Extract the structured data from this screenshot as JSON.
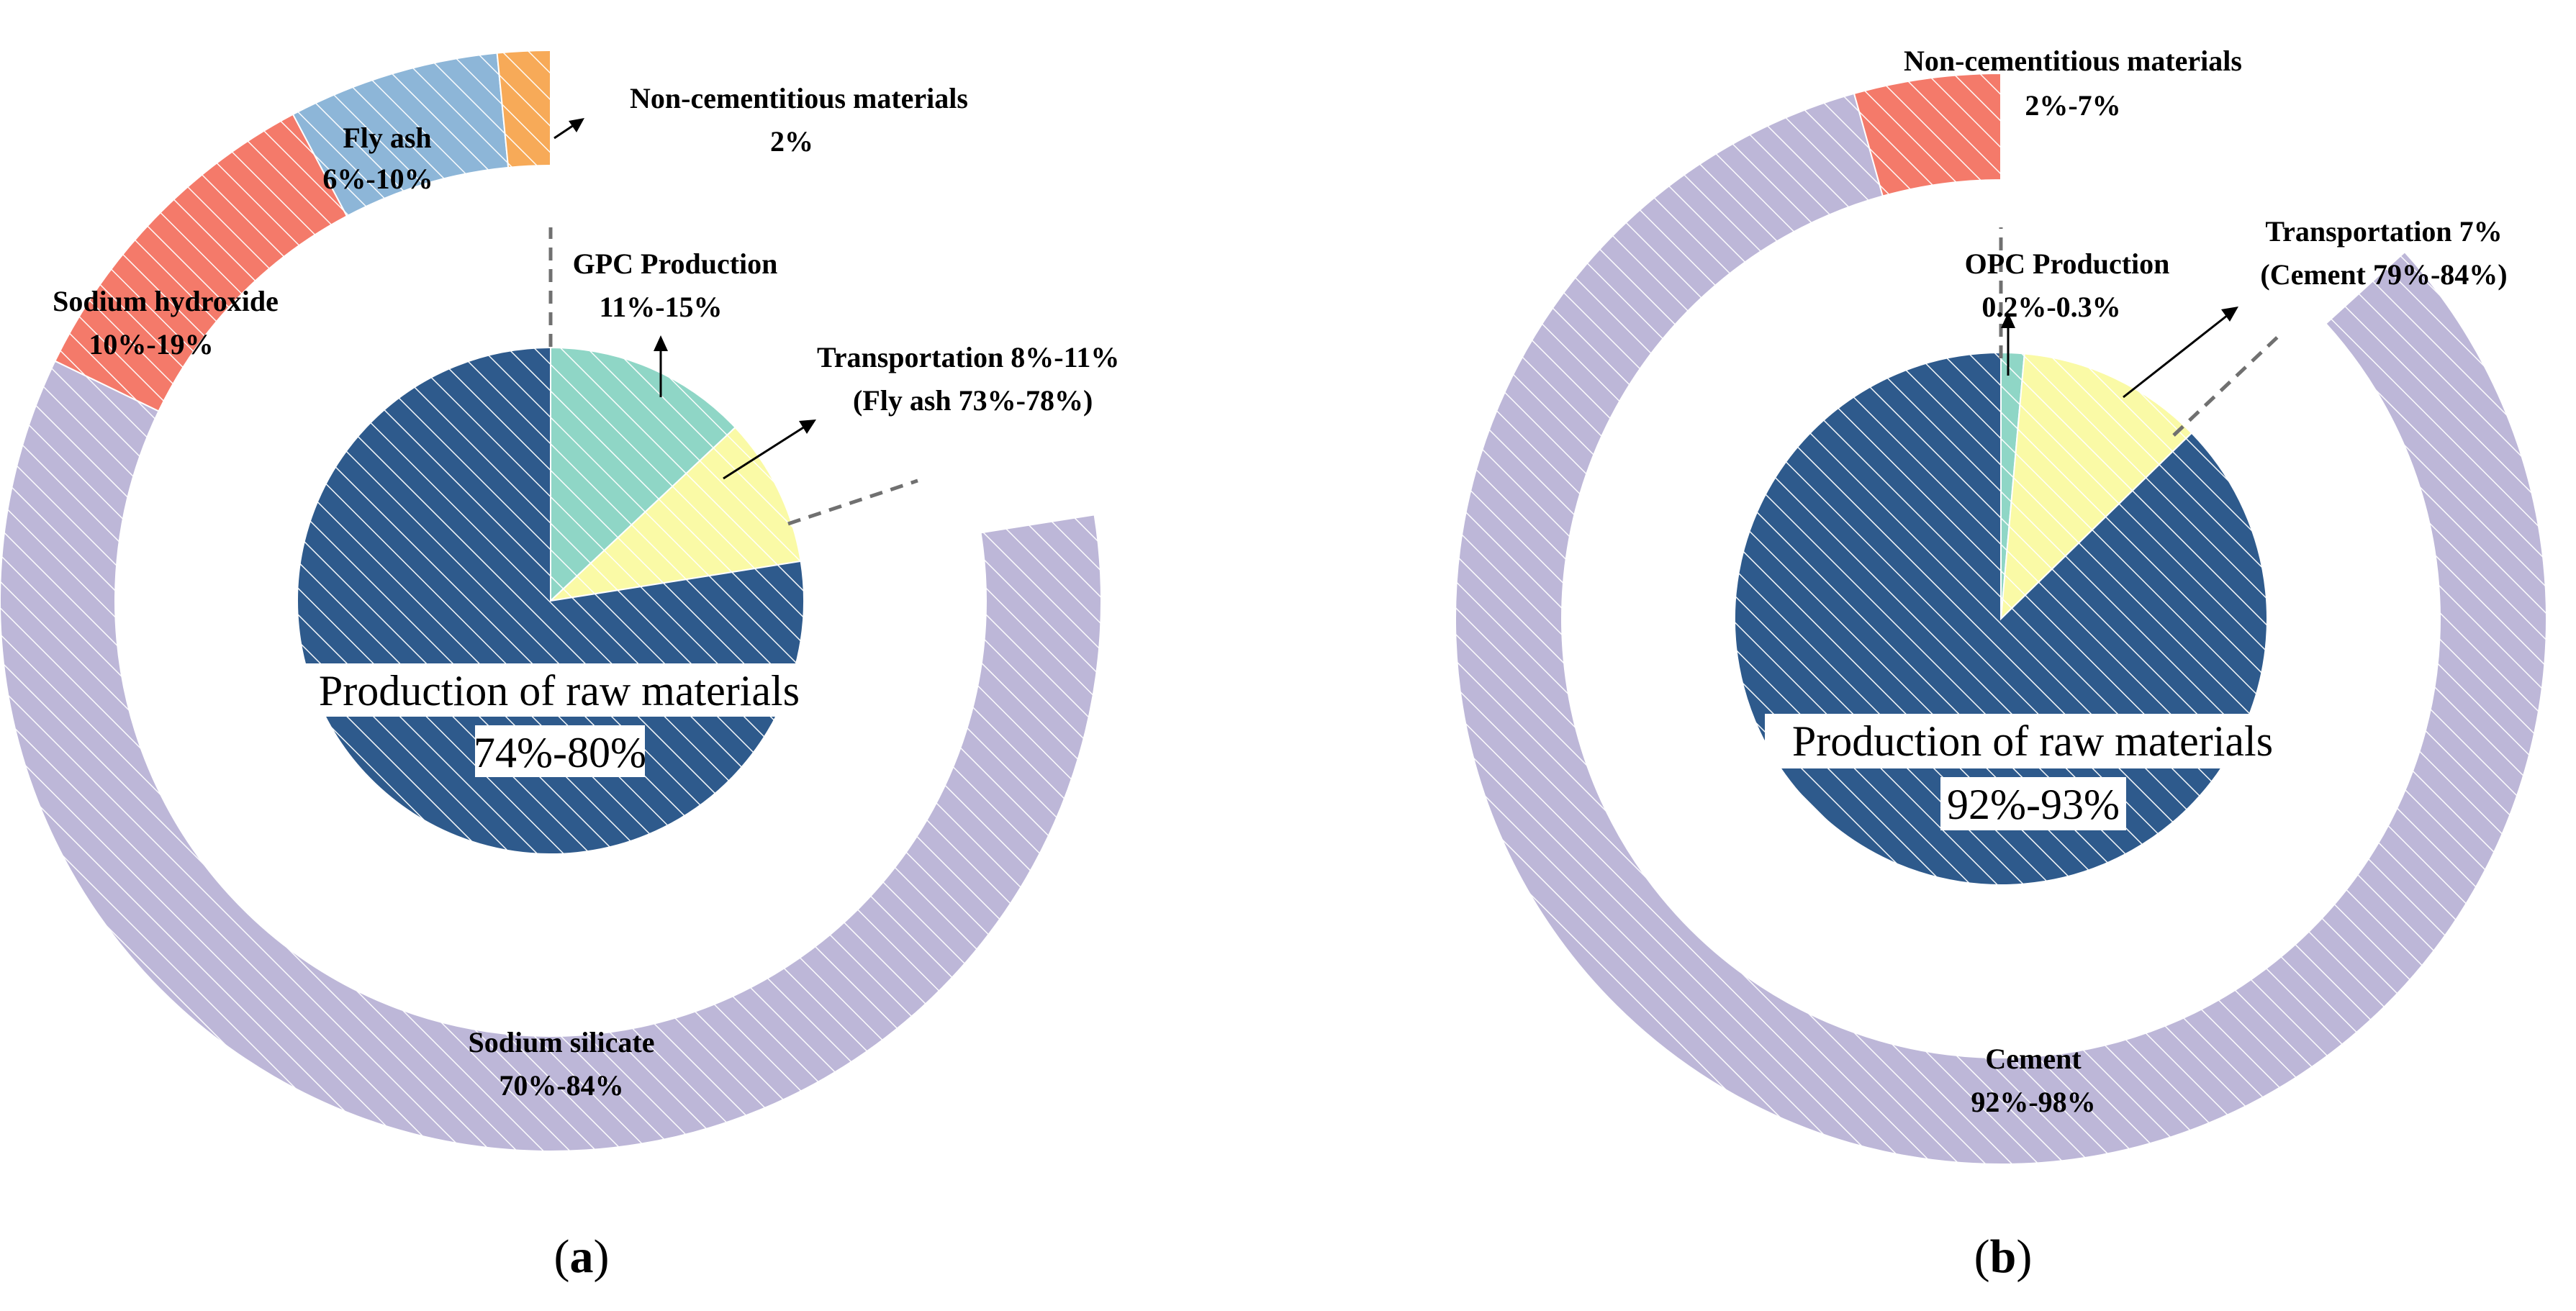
{
  "colors": {
    "production_raw": "#2E5A8C",
    "production_plant": "#8FD6C6",
    "transportation": "#FAFAA6",
    "outer_main": "#BDB7D8",
    "sodium_hydroxide": "#F47A6A",
    "fly_ash": "#8DB6D8",
    "non_cementitious": "#F7AA58",
    "non_cementitious_b": "#F47A6A",
    "hatch": "#ffffff",
    "text_box_bg": "#ffffff"
  },
  "chart_data": [
    {
      "panel": "a",
      "type": "pie",
      "title": "",
      "caption": "a",
      "inner": {
        "slices": [
          {
            "name": "GPC Production",
            "value": 13,
            "range": "11%-15%",
            "color_key": "production_plant"
          },
          {
            "name": "Transportation",
            "value": 9.5,
            "range": "8%-11%",
            "color_key": "transportation"
          },
          {
            "name": "Production of raw materials",
            "value": 77.5,
            "range": "74%-80%",
            "color_key": "production_raw"
          }
        ]
      },
      "outer": {
        "slices": [
          {
            "name": "Sodium silicate",
            "value": 77,
            "range": "70%-84%",
            "color_key": "outer_main"
          },
          {
            "name": "Sodium hydroxide",
            "value": 13,
            "range": "10%-19%",
            "color_key": "sodium_hydroxide"
          },
          {
            "name": "Fly ash",
            "value": 8,
            "range": "6%-10%",
            "color_key": "fly_ash"
          },
          {
            "name": "Non-cementitious materials",
            "value": 2,
            "range": "2%",
            "color_key": "non_cementitious"
          }
        ]
      },
      "labels": {
        "non_cementitious_title": "Non-cementitious materials",
        "non_cementitious_value": "2%",
        "fly_ash_title": "Fly ash",
        "fly_ash_value": "6%-10%",
        "sodium_hydroxide_title": "Sodium hydroxide",
        "sodium_hydroxide_value": "10%-19%",
        "production_title": "GPC Production",
        "production_value": "11%-15%",
        "transport_line1": "Transportation 8%-11%",
        "transport_line2": "(Fly ash 73%-78%)",
        "raw_title": "Production of raw materials",
        "raw_value": "74%-80%",
        "outer_main_title": "Sodium silicate",
        "outer_main_value": "70%-84%"
      }
    },
    {
      "panel": "b",
      "type": "pie",
      "title": "",
      "caption": "b",
      "inner": {
        "slices": [
          {
            "name": "OPC Production",
            "value": 0.25,
            "range": "0.2%-0.3%",
            "color_key": "production_plant"
          },
          {
            "name": "Transportation",
            "value": 7,
            "range": "7%",
            "color_key": "transportation"
          },
          {
            "name": "Production of raw materials",
            "value": 92.75,
            "range": "92%-93%",
            "color_key": "production_raw"
          }
        ]
      },
      "outer": {
        "slices": [
          {
            "name": "Cement",
            "value": 95,
            "range": "92%-98%",
            "color_key": "outer_main"
          },
          {
            "name": "Non-cementitious materials",
            "value": 5,
            "range": "2%-7%",
            "color_key": "non_cementitious_b"
          }
        ]
      },
      "labels": {
        "non_cementitious_title": "Non-cementitious materials",
        "non_cementitious_value": "2%-7%",
        "production_title": "OPC Production",
        "production_value": "0.2%-0.3%",
        "transport_line1": "Transportation 7%",
        "transport_line2": "(Cement 79%-84%)",
        "raw_title": "Production of raw materials",
        "raw_value": "92%-93%",
        "outer_main_title": "Cement",
        "outer_main_value": "92%-98%"
      }
    }
  ]
}
